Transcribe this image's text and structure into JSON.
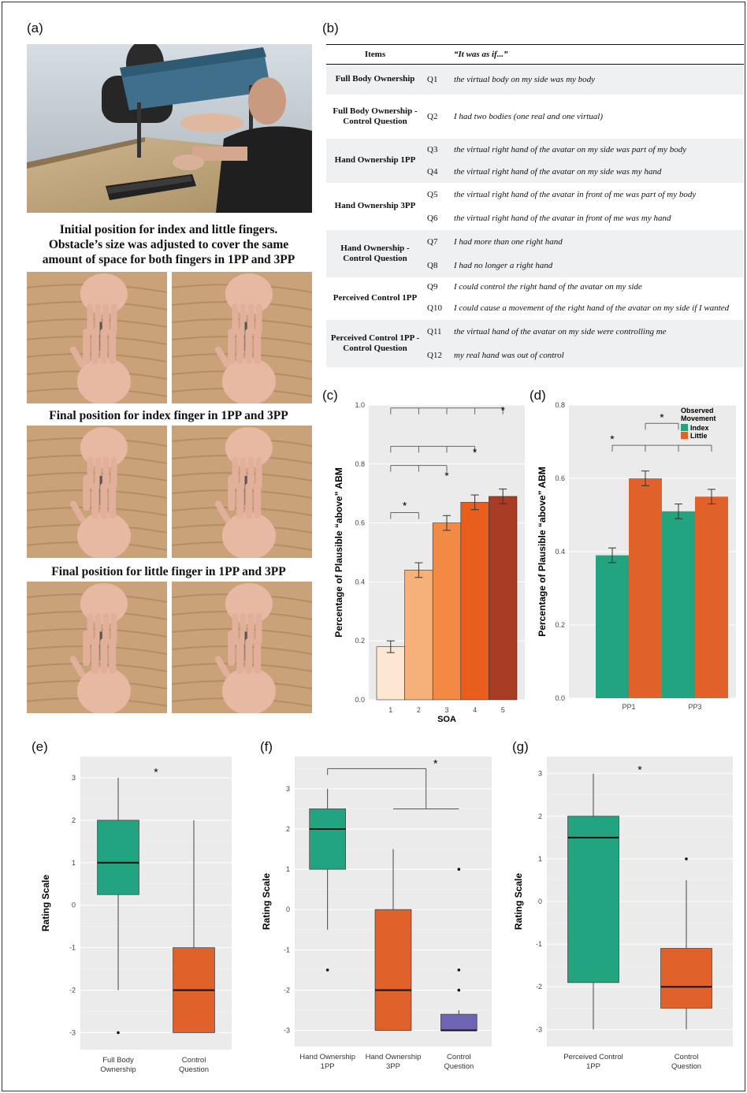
{
  "panels": {
    "a": "(a)",
    "b": "(b)",
    "c": "(c)",
    "d": "(d)",
    "e": "(e)",
    "f": "(f)",
    "g": "(g)"
  },
  "captions": {
    "initial": [
      "Initial position for index and little fingers.",
      "Obstacle’s size was adjusted to cover the same",
      "amount of space for both fingers in 1PP and 3PP"
    ],
    "final_index": "Final position for index finger in 1PP and 3PP",
    "final_little": "Final position for little finger in 1PP and 3PP"
  },
  "table": {
    "header_items": "Items",
    "header_prefix": "“It was as if...”",
    "groups": [
      {
        "label": "Full Body Ownership",
        "rows": [
          {
            "q": "Q1",
            "text": "the virtual body on my side was my body"
          }
        ]
      },
      {
        "label": "Full Body Ownership - Control Question",
        "rows": [
          {
            "q": "Q2",
            "text": "I had two bodies (one real and one virtual)"
          }
        ]
      },
      {
        "label": "Hand Ownership 1PP",
        "rows": [
          {
            "q": "Q3",
            "text": "the virtual right hand of the avatar on my side was part of my body"
          },
          {
            "q": "Q4",
            "text": "the virtual right hand of the avatar on my side was my hand"
          }
        ]
      },
      {
        "label": "Hand Ownership 3PP",
        "rows": [
          {
            "q": "Q5",
            "text": "the virtual right hand of the avatar in front of me was part of my body"
          },
          {
            "q": "Q6",
            "text": "the virtual right hand of the avatar in front of me was my hand"
          }
        ]
      },
      {
        "label": "Hand Ownership - Control Question",
        "rows": [
          {
            "q": "Q7",
            "text": "I had more than one right hand"
          },
          {
            "q": "Q8",
            "text": "I had no longer a right hand"
          }
        ]
      },
      {
        "label": "Perceived Control 1PP",
        "rows": [
          {
            "q": "Q9",
            "text": "I could control the right hand of the avatar on my side"
          },
          {
            "q": "Q10",
            "text": "I could cause a movement of the right hand of the avatar on my side if I wanted"
          }
        ]
      },
      {
        "label": "Perceived Control 1PP - Control Question",
        "rows": [
          {
            "q": "Q11",
            "text": "the virtual hand of the avatar on my side were controlling me"
          },
          {
            "q": "Q12",
            "text": "my real hand was out of control"
          }
        ]
      }
    ]
  },
  "colors": {
    "index": "#21a47f",
    "little": "#e0622a",
    "purple": "#6e66b4",
    "panel_bg": "#ebebeb"
  },
  "chart_data": [
    {
      "panel": "c",
      "type": "bar",
      "categories": [
        "1",
        "2",
        "3",
        "4",
        "5"
      ],
      "values": [
        0.18,
        0.44,
        0.6,
        0.67,
        0.69
      ],
      "errors": [
        0.02,
        0.025,
        0.025,
        0.025,
        0.025
      ],
      "colors": [
        "#fde6d2",
        "#f6b07a",
        "#f28a46",
        "#e95e1c",
        "#a83c24"
      ],
      "xlabel": "SOA",
      "ylabel": "Percentage of Plausible “above” ABM",
      "ylim": [
        0,
        1.0
      ],
      "yticks": [
        "0.0",
        "0.2",
        "0.4",
        "0.6",
        "0.8",
        "1.0"
      ],
      "significance": [
        "*",
        "*",
        "*",
        "*"
      ]
    },
    {
      "panel": "d",
      "type": "bar",
      "categories": [
        "PP1",
        "PP3"
      ],
      "series": [
        {
          "name": "Index",
          "values": [
            0.39,
            0.51
          ]
        },
        {
          "name": "Little",
          "values": [
            0.6,
            0.55
          ]
        }
      ],
      "errors": [
        0.02,
        0.02
      ],
      "legend_title": "Observed Movement",
      "legend_position": "top-right",
      "ylabel": "Percentage of Plausible “above” ABM",
      "ylim": [
        0,
        0.8
      ],
      "yticks": [
        "0.0",
        "0.2",
        "0.4",
        "0.6",
        "0.8"
      ],
      "significance": [
        "*",
        "*"
      ]
    },
    {
      "panel": "e",
      "type": "box",
      "categories": [
        "Full Body Ownership",
        "Control Question"
      ],
      "boxes": [
        {
          "whisker_low": -2,
          "q1": 0.25,
          "median": 1,
          "q3": 2,
          "whisker_high": 3,
          "outliers": [
            -3
          ]
        },
        {
          "whisker_low": -3,
          "q1": -3,
          "median": -2,
          "q3": -1,
          "whisker_high": 2,
          "outliers": []
        }
      ],
      "ylabel": "Rating Scale",
      "ylim": [
        -3.4,
        3.5
      ],
      "yticks": [
        "-3",
        "-2",
        "-1",
        "0",
        "1",
        "2",
        "3"
      ],
      "significance": [
        "*"
      ]
    },
    {
      "panel": "f",
      "type": "box",
      "categories": [
        "Hand Ownership 1PP",
        "Hand Ownership 3PP",
        "Control Question"
      ],
      "boxes": [
        {
          "whisker_low": -0.5,
          "q1": 1,
          "median": 2,
          "q3": 2.5,
          "whisker_high": 3,
          "outliers": [
            -1.5
          ]
        },
        {
          "whisker_low": -3,
          "q1": -3,
          "median": -2,
          "q3": 0,
          "whisker_high": 1.5,
          "outliers": []
        },
        {
          "whisker_low": -3,
          "q1": -3,
          "median": -3,
          "q3": -2.6,
          "whisker_high": -2.5,
          "outliers": [
            1,
            -1.5,
            -2
          ]
        }
      ],
      "ylabel": "Rating Scale",
      "ylim": [
        -3.4,
        3.8
      ],
      "yticks": [
        "-3",
        "-2",
        "-1",
        "0",
        "1",
        "2",
        "3"
      ],
      "significance": [
        "*"
      ]
    },
    {
      "panel": "g",
      "type": "box",
      "categories": [
        "Perceived Control 1PP",
        "Control Question"
      ],
      "boxes": [
        {
          "whisker_low": -3,
          "q1": -1.9,
          "median": 1.5,
          "q3": 2,
          "whisker_high": 3,
          "outliers": []
        },
        {
          "whisker_low": -3,
          "q1": -2.5,
          "median": -2,
          "q3": -1.1,
          "whisker_high": 0.5,
          "outliers": [
            1
          ]
        }
      ],
      "ylabel": "Rating Scale",
      "ylim": [
        -3.4,
        3.4
      ],
      "yticks": [
        "-3",
        "-2",
        "-1",
        "0",
        "1",
        "2",
        "3"
      ],
      "significance": [
        "*"
      ]
    }
  ]
}
